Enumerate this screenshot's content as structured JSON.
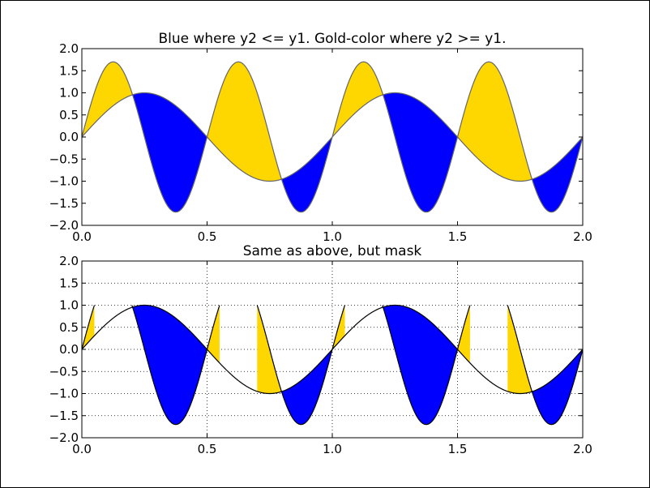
{
  "chart_data": [
    {
      "type": "area",
      "title": "Blue where y2 <= y1. Gold-color where y2 >= y1.",
      "x_range": [
        0,
        2
      ],
      "ylim": [
        -2,
        2
      ],
      "xticks": [
        "0.0",
        "0.5",
        "1.0",
        "1.5",
        "2.0"
      ],
      "xtick_values": [
        0,
        0.5,
        1,
        1.5,
        2
      ],
      "yticks": [
        "2.0",
        "1.5",
        "1.0",
        "0.5",
        "0.0",
        "−0.5",
        "−1.0",
        "−1.5",
        "−2.0"
      ],
      "ytick_values": [
        2,
        1.5,
        1,
        0.5,
        0,
        -0.5,
        -1,
        -1.5,
        -2
      ],
      "series": [
        {
          "role": "y1",
          "expression": "sin(2*pi*x)"
        },
        {
          "role": "y2",
          "expression": "1.7*sin(4*pi*x)"
        }
      ],
      "fill_colors": {
        "y2_below_y1": "#0000ff",
        "y2_above_y1": "#ffd700"
      },
      "line_color": "#666666",
      "grid": false,
      "mask": false
    },
    {
      "type": "area",
      "title": "Same as above, but mask",
      "x_range": [
        0,
        2
      ],
      "ylim": [
        -2,
        2
      ],
      "xticks": [
        "0.0",
        "0.5",
        "1.0",
        "1.5",
        "2.0"
      ],
      "xtick_values": [
        0,
        0.5,
        1,
        1.5,
        2
      ],
      "yticks": [
        "2.0",
        "1.5",
        "1.0",
        "0.5",
        "0.0",
        "−0.5",
        "−1.0",
        "−1.5",
        "−2.0"
      ],
      "ytick_values": [
        2,
        1.5,
        1,
        0.5,
        0,
        -0.5,
        -1,
        -1.5,
        -2
      ],
      "series": [
        {
          "role": "y1",
          "expression": "sin(2*pi*x)"
        },
        {
          "role": "y2",
          "expression": "1.7*sin(4*pi*x)",
          "masked_where": "y2 > 1.0"
        }
      ],
      "fill_colors": {
        "y2_below_y1": "#0000ff",
        "y2_above_y1": "#ffd700"
      },
      "line_color": "#000000",
      "grid": true,
      "mask": true
    }
  ]
}
